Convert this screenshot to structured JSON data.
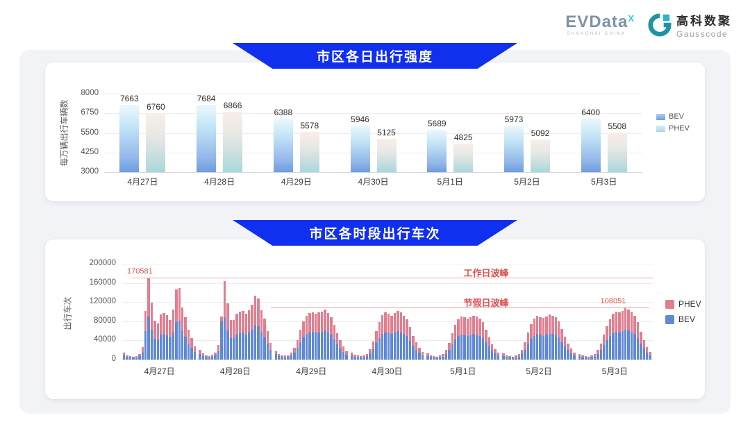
{
  "header": {
    "evdata": {
      "brand": "EVData",
      "sup": "X",
      "subtext": "SHANGHAI CHINA"
    },
    "gausscode": {
      "cn": "高科数聚",
      "en": "Gausscode"
    }
  },
  "colors": {
    "banner_blue": "#112fee",
    "annotation_red": "#e05252",
    "annotation_line": "#f0a3a3",
    "top_bev_gradient_top": "#ecf8fd",
    "top_bev_gradient_bottom": "#6e9cdf",
    "top_phev_gradient_top": "#f8ede9",
    "top_phev_gradient_bottom": "#a8d8dc",
    "bottom_phev": "#e17e90",
    "bottom_bev": "#6089d5"
  },
  "chart_data": [
    {
      "type": "bar",
      "title": "市区各日出行强度",
      "ylabel": "每万辆出行车辆数",
      "ylim": [
        3000,
        8000
      ],
      "yticks": [
        8000,
        6750,
        5500,
        4250,
        3000
      ],
      "grid": true,
      "legend_position": "right",
      "categories": [
        "4月27日",
        "4月28日",
        "4月29日",
        "4月30日",
        "5月1日",
        "5月2日",
        "5月3日"
      ],
      "series": [
        {
          "name": "BEV",
          "values": [
            7663,
            7684,
            6388,
            5946,
            5689,
            5973,
            6400
          ]
        },
        {
          "name": "PHEV",
          "values": [
            6760,
            6866,
            5578,
            5125,
            4825,
            5092,
            5508
          ]
        }
      ]
    },
    {
      "type": "bar-stacked",
      "title": "市区各时段出行车次",
      "ylabel": "出行车次",
      "ylim": [
        0,
        200000
      ],
      "yticks": [
        200000,
        160000,
        120000,
        80000,
        40000,
        0
      ],
      "grid": true,
      "legend_position": "right",
      "hours_per_day": 24,
      "categories": [
        "4月27日",
        "4月28日",
        "4月29日",
        "4月30日",
        "5月1日",
        "5月2日",
        "5月3日"
      ],
      "series": [
        {
          "name": "PHEV",
          "color": "#e17e90"
        },
        {
          "name": "BEV",
          "color": "#6089d5"
        }
      ],
      "annotations": [
        {
          "name": "workday-peak",
          "label": "工作日波峰",
          "value_label": "170581",
          "value": 170581
        },
        {
          "name": "holiday-peak",
          "label": "节假日波峰",
          "value_label": "108051",
          "value": 108051
        }
      ],
      "days": [
        {
          "date": "4月27日",
          "bev": [
            9000,
            5500,
            4300,
            3700,
            4900,
            7300,
            15000,
            60000,
            90000,
            62000,
            44000,
            42000,
            52000,
            53000,
            51000,
            46000,
            57000,
            79000,
            81000,
            59000,
            48000,
            34000,
            25000,
            16000
          ],
          "phev": [
            6000,
            3500,
            2700,
            2300,
            3100,
            4700,
            11000,
            41000,
            80581,
            57000,
            37000,
            34000,
            42000,
            44000,
            42000,
            37000,
            47000,
            67000,
            69000,
            50000,
            40000,
            28000,
            20000,
            12000
          ]
        },
        {
          "date": "4月28日",
          "bev": [
            12000,
            8000,
            5500,
            4900,
            6100,
            9000,
            18000,
            80000,
            88000,
            61000,
            45000,
            46000,
            52000,
            55000,
            56000,
            52000,
            57000,
            63000,
            72000,
            69000,
            56000,
            47000,
            33000,
            20000
          ],
          "phev": [
            8000,
            5000,
            3500,
            3100,
            3900,
            6000,
            12000,
            10000,
            76000,
            56000,
            37000,
            37000,
            43000,
            45000,
            45000,
            43000,
            46000,
            52000,
            61000,
            59000,
            47000,
            38000,
            27000,
            15000
          ]
        },
        {
          "date": "4月29日",
          "bev": [
            11000,
            7000,
            5500,
            5000,
            5500,
            8500,
            14000,
            24000,
            36000,
            47000,
            54000,
            57000,
            58000,
            56000,
            57000,
            58000,
            61000,
            56000,
            52000,
            42000,
            32000,
            23000,
            16000,
            10000
          ],
          "phev": [
            7000,
            5000,
            3500,
            3000,
            3500,
            5500,
            10000,
            16000,
            26000,
            33000,
            38000,
            40000,
            41000,
            40000,
            41000,
            42000,
            44000,
            41000,
            37000,
            31000,
            23000,
            17000,
            12000,
            8000
          ]
        },
        {
          "date": "4月30日",
          "bev": [
            8500,
            6000,
            5000,
            4300,
            5000,
            7000,
            13000,
            22000,
            35000,
            45000,
            54000,
            57000,
            56000,
            53000,
            56000,
            59000,
            57000,
            53000,
            49000,
            39000,
            29000,
            21000,
            14000,
            9000
          ],
          "phev": [
            5500,
            4000,
            3000,
            2700,
            3000,
            5000,
            9000,
            16000,
            25000,
            33000,
            39000,
            41000,
            40000,
            39000,
            41000,
            43000,
            41000,
            39000,
            35000,
            29000,
            21000,
            15000,
            10000,
            7000
          ]
        },
        {
          "date": "5月1日",
          "bev": [
            8000,
            5500,
            4300,
            3700,
            5000,
            6500,
            12000,
            20000,
            32000,
            42000,
            49000,
            52000,
            51000,
            49000,
            51000,
            53000,
            52000,
            50000,
            45000,
            36000,
            27000,
            19000,
            13000,
            9000
          ],
          "phev": [
            5000,
            3500,
            2700,
            2300,
            3000,
            4500,
            8000,
            15000,
            23000,
            30000,
            35000,
            38000,
            37000,
            36000,
            37000,
            39000,
            38000,
            36000,
            33000,
            26000,
            19000,
            13000,
            9000,
            6000
          ]
        },
        {
          "date": "5月2日",
          "bev": [
            8000,
            5500,
            4300,
            3700,
            5000,
            6500,
            12500,
            21000,
            33000,
            43000,
            50000,
            53000,
            52000,
            50000,
            52000,
            54000,
            53000,
            51000,
            46000,
            37000,
            28000,
            20000,
            13000,
            9000
          ],
          "phev": [
            5000,
            3500,
            2700,
            2300,
            3000,
            4500,
            8500,
            15000,
            23000,
            31000,
            36000,
            38000,
            37000,
            37000,
            38000,
            40000,
            39000,
            37000,
            34000,
            27000,
            20000,
            14000,
            10000,
            6000
          ]
        },
        {
          "date": "5月3日",
          "bev": [
            7000,
            5500,
            4300,
            3700,
            5000,
            6500,
            12000,
            20000,
            30000,
            41000,
            49000,
            55000,
            58000,
            57000,
            59000,
            62000,
            61000,
            58000,
            53000,
            45000,
            34000,
            23000,
            15000,
            9000
          ],
          "phev": [
            5000,
            3500,
            2700,
            2300,
            3000,
            4500,
            8000,
            14000,
            22000,
            29000,
            35000,
            40000,
            42000,
            41000,
            43000,
            46051,
            44000,
            42000,
            39000,
            33000,
            24000,
            17000,
            11000,
            7000
          ]
        }
      ]
    }
  ]
}
